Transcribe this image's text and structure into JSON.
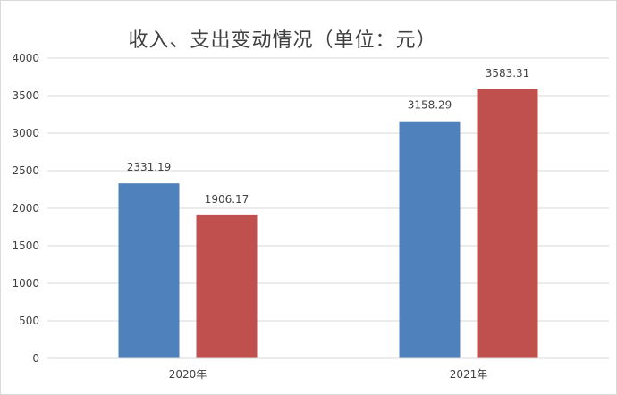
{
  "chart_data": {
    "type": "bar",
    "title": "收入、支出变动情况（单位：元）",
    "categories": [
      "2020年",
      "2021年"
    ],
    "series": [
      {
        "values": [
          2331.19,
          3158.29
        ],
        "labels": [
          "2331.19",
          "3158.29"
        ],
        "color": "#4f81bd"
      },
      {
        "values": [
          1906.17,
          3583.31
        ],
        "labels": [
          "1906.17",
          "3583.31"
        ],
        "color": "#c0504d"
      }
    ],
    "ylim": [
      0,
      4000
    ],
    "yticks": [
      0,
      500,
      1000,
      1500,
      2000,
      2500,
      3000,
      3500,
      4000
    ],
    "grid": true,
    "legend": "none",
    "gridColor": "#d9d9d9"
  }
}
